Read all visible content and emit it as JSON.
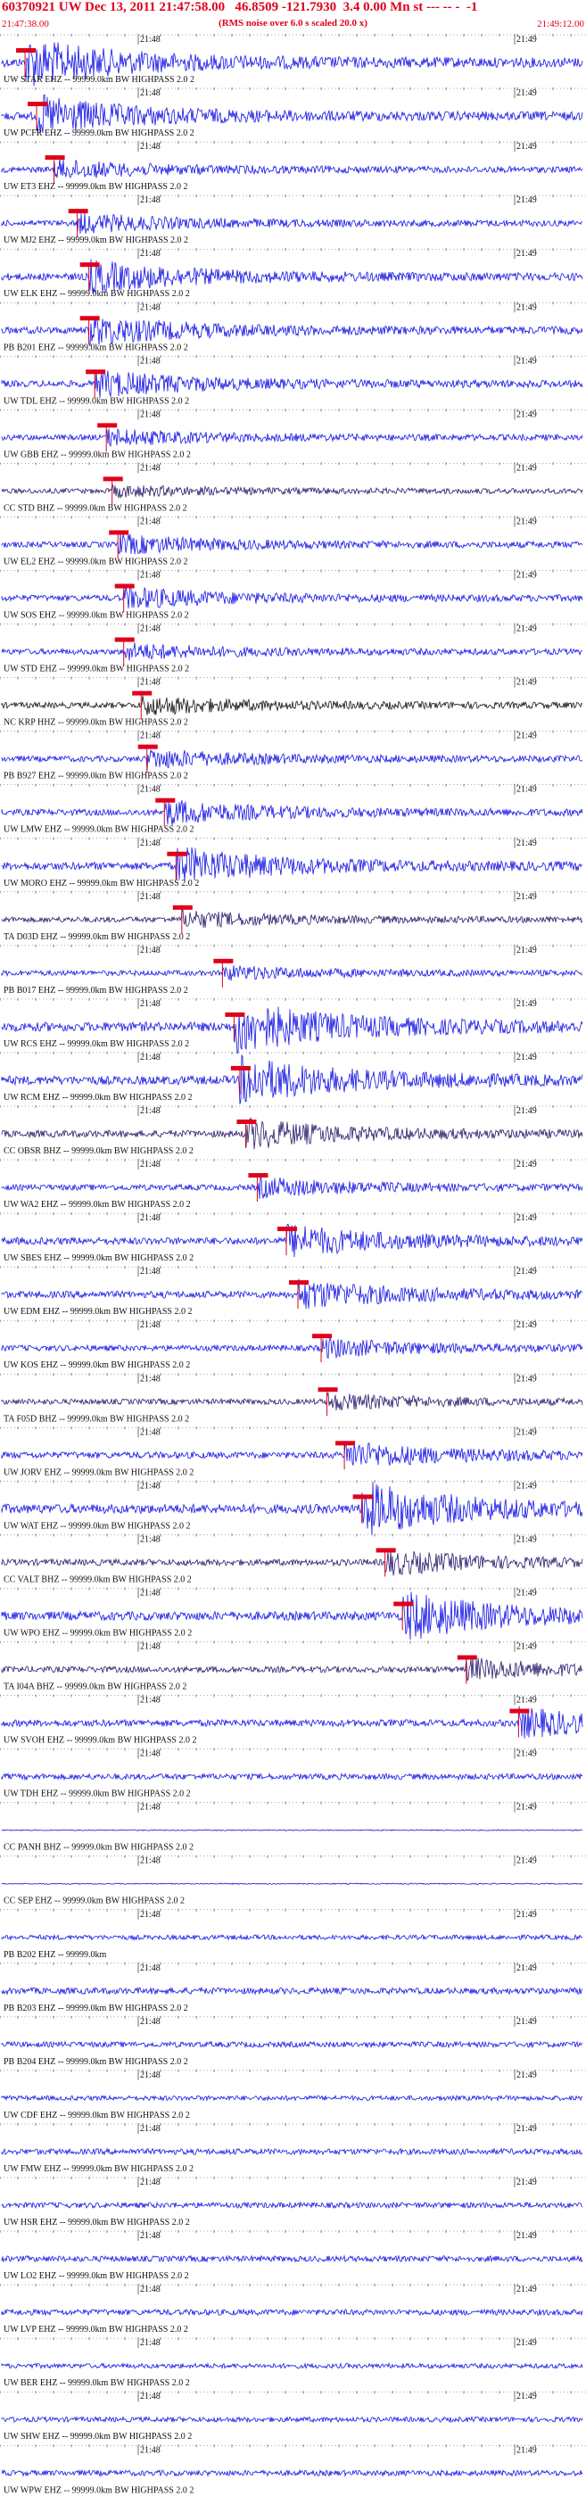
{
  "header": {
    "title": "60370921 UW Dec 13, 2011 21:47:58.00   46.8509 -121.7930  3.4 0.00 Mn st --- -- -  -1",
    "rms_note": "(RMS noise over 6.0 s scaled 20.0 x)",
    "start_time": "21:47:38.00",
    "end_time": "21:49:12.00"
  },
  "time_ticks": [
    "21:48",
    "21:49"
  ],
  "colors": {
    "trace": "#1414e6",
    "trace_dark": "#2a1a6b",
    "trace_black": "#111111",
    "pick": "#e0001b",
    "text": "#111111"
  },
  "stations": [
    {
      "label": "UW STAR EHZ -- 99999.0km BW  HIGHPASS  2.0  2",
      "pick": 0.04,
      "amp": 0.9,
      "style": "blue"
    },
    {
      "label": "UW PCFR EHZ -- 99999.0km BW  HIGHPASS  2.0  2",
      "pick": 0.06,
      "amp": 0.75,
      "style": "blue"
    },
    {
      "label": "UW ET3 EHZ -- 99999.0km BW  HIGHPASS  2.0  2",
      "pick": 0.09,
      "amp": 0.35,
      "style": "blue"
    },
    {
      "label": "UW MJ2 EHZ -- 99999.0km BW  HIGHPASS  2.0  2",
      "pick": 0.13,
      "amp": 0.35,
      "style": "blue"
    },
    {
      "label": "UW ELK EHZ -- 99999.0km BW  HIGHPASS  2.0  2",
      "pick": 0.15,
      "amp": 0.6,
      "style": "blue"
    },
    {
      "label": "PB B201 EHZ -- 99999.0km BW  HIGHPASS  2.0  2",
      "pick": 0.15,
      "amp": 0.55,
      "style": "blue"
    },
    {
      "label": "UW TDL EHZ -- 99999.0km BW  HIGHPASS  2.0  2",
      "pick": 0.16,
      "amp": 0.5,
      "style": "blue"
    },
    {
      "label": "UW GBB EHZ -- 99999.0km BW  HIGHPASS  2.0  2",
      "pick": 0.18,
      "amp": 0.3,
      "style": "blue"
    },
    {
      "label": "CC STD BHZ -- 99999.0km BW  HIGHPASS  2.0  2",
      "pick": 0.19,
      "amp": 0.2,
      "style": "dark"
    },
    {
      "label": "UW EL2 EHZ -- 99999.0km BW  HIGHPASS  2.0  2",
      "pick": 0.2,
      "amp": 0.35,
      "style": "blue"
    },
    {
      "label": "UW SOS EHZ -- 99999.0km BW  HIGHPASS  2.0  2",
      "pick": 0.21,
      "amp": 0.4,
      "style": "blue"
    },
    {
      "label": "UW STD EHZ -- 99999.0km BW  HIGHPASS  2.0  2",
      "pick": 0.21,
      "amp": 0.3,
      "style": "blue"
    },
    {
      "label": "NC KRP HHZ -- 99999.0km BW  HIGHPASS  2.0  2",
      "pick": 0.24,
      "amp": 0.35,
      "style": "black"
    },
    {
      "label": "PB B927 EHZ -- 99999.0km BW  HIGHPASS  2.0  2",
      "pick": 0.25,
      "amp": 0.35,
      "style": "blue"
    },
    {
      "label": "UW LMW EHZ -- 99999.0km BW  HIGHPASS  2.0  2",
      "pick": 0.28,
      "amp": 0.45,
      "style": "blue"
    },
    {
      "label": "UW MORO EHZ -- 99999.0km BW  HIGHPASS  2.0  2",
      "pick": 0.3,
      "amp": 0.7,
      "style": "blue"
    },
    {
      "label": "TA D03D EHZ -- 99999.0km BW  HIGHPASS  2.0  2",
      "pick": 0.31,
      "amp": 0.3,
      "style": "dark"
    },
    {
      "label": "PB B017 EHZ -- 99999.0km BW  HIGHPASS  2.0  2",
      "pick": 0.38,
      "amp": 0.25,
      "style": "blue"
    },
    {
      "label": "UW RCS EHZ -- 99999.0km BW  HIGHPASS  2.0  2",
      "pick": 0.4,
      "amp": 1.0,
      "style": "blue"
    },
    {
      "label": "UW RCM EHZ -- 99999.0km BW  HIGHPASS  2.0  2",
      "pick": 0.41,
      "amp": 0.9,
      "style": "blue"
    },
    {
      "label": "CC OBSR BHZ -- 99999.0km BW  HIGHPASS  2.0  2",
      "pick": 0.42,
      "amp": 0.55,
      "style": "dark"
    },
    {
      "label": "UW WA2 EHZ -- 99999.0km BW  HIGHPASS  2.0  2",
      "pick": 0.44,
      "amp": 0.35,
      "style": "blue"
    },
    {
      "label": "UW SBES EHZ -- 99999.0km BW  HIGHPASS  2.0  2",
      "pick": 0.49,
      "amp": 0.6,
      "style": "blue"
    },
    {
      "label": "UW EDM EHZ -- 99999.0km BW  HIGHPASS  2.0  2",
      "pick": 0.51,
      "amp": 0.55,
      "style": "blue"
    },
    {
      "label": "UW KOS EHZ -- 99999.0km BW  HIGHPASS  2.0  2",
      "pick": 0.55,
      "amp": 0.35,
      "style": "blue"
    },
    {
      "label": "TA F05D BHZ -- 99999.0km BW  HIGHPASS  2.0  2",
      "pick": 0.56,
      "amp": 0.3,
      "style": "dark"
    },
    {
      "label": "UW JORV EHZ -- 99999.0km BW  HIGHPASS  2.0  2",
      "pick": 0.59,
      "amp": 0.5,
      "style": "blue"
    },
    {
      "label": "UW WAT EHZ -- 99999.0km BW  HIGHPASS  2.0  2",
      "pick": 0.62,
      "amp": 1.0,
      "style": "blue"
    },
    {
      "label": "CC VALT BHZ -- 99999.0km BW  HIGHPASS  2.0  2",
      "pick": 0.66,
      "amp": 0.45,
      "style": "dark"
    },
    {
      "label": "UW WPO EHZ -- 99999.0km BW  HIGHPASS  2.0  2",
      "pick": 0.69,
      "amp": 0.9,
      "style": "blue"
    },
    {
      "label": "TA I04A BHZ -- 99999.0km BW  HIGHPASS  2.0  2",
      "pick": 0.8,
      "amp": 0.4,
      "style": "dark"
    },
    {
      "label": "UW SVOH EHZ -- 99999.0km BW  HIGHPASS  2.0  2",
      "pick": 0.89,
      "amp": 0.55,
      "style": "blue"
    },
    {
      "label": "UW TDH EHZ -- 99999.0km BW  HIGHPASS  2.0  2",
      "pick": null,
      "amp": 0.35,
      "style": "blue"
    },
    {
      "label": "CC PANH BHZ -- 99999.0km BW  HIGHPASS  2.0  2",
      "pick": null,
      "amp": 0.0,
      "style": "flat"
    },
    {
      "label": "CC SEP EHZ -- 99999.0km BW  HIGHPASS  2.0  2",
      "pick": null,
      "amp": 0.0,
      "style": "flat"
    },
    {
      "label": "PB B202 EHZ -- 99999.0km",
      "pick": null,
      "amp": 0.15,
      "style": "blue"
    },
    {
      "label": "PB B203 EHZ -- 99999.0km BW  HIGHPASS  2.0  2",
      "pick": null,
      "amp": 0.45,
      "style": "blue"
    },
    {
      "label": "PB B204 EHZ -- 99999.0km BW  HIGHPASS  2.0  2",
      "pick": null,
      "amp": 0.3,
      "style": "blue"
    },
    {
      "label": "UW CDF EHZ -- 99999.0km BW  HIGHPASS  2.0  2",
      "pick": null,
      "amp": 0.15,
      "style": "blue"
    },
    {
      "label": "UW FMW EHZ -- 99999.0km BW  HIGHPASS  2.0  2",
      "pick": null,
      "amp": 0.35,
      "style": "blue"
    },
    {
      "label": "UW HSR EHZ -- 99999.0km BW  HIGHPASS  2.0  2",
      "pick": null,
      "amp": 0.3,
      "style": "blue"
    },
    {
      "label": "UW LO2 EHZ -- 99999.0km BW  HIGHPASS  2.0  2",
      "pick": null,
      "amp": 0.35,
      "style": "blue"
    },
    {
      "label": "UW LVP EHZ -- 99999.0km BW  HIGHPASS  2.0  2",
      "pick": null,
      "amp": 0.35,
      "style": "blue"
    },
    {
      "label": "UW BER EHZ -- 99999.0km BW  HIGHPASS  2.0  2",
      "pick": null,
      "amp": 0.15,
      "style": "blue"
    },
    {
      "label": "UW SHW EHZ -- 99999.0km BW  HIGHPASS  2.0  2",
      "pick": null,
      "amp": 0.2,
      "style": "blue"
    },
    {
      "label": "UW WPW EHZ -- 99999.0km BW  HIGHPASS  2.0  2",
      "pick": null,
      "amp": 0.3,
      "style": "blue"
    }
  ]
}
